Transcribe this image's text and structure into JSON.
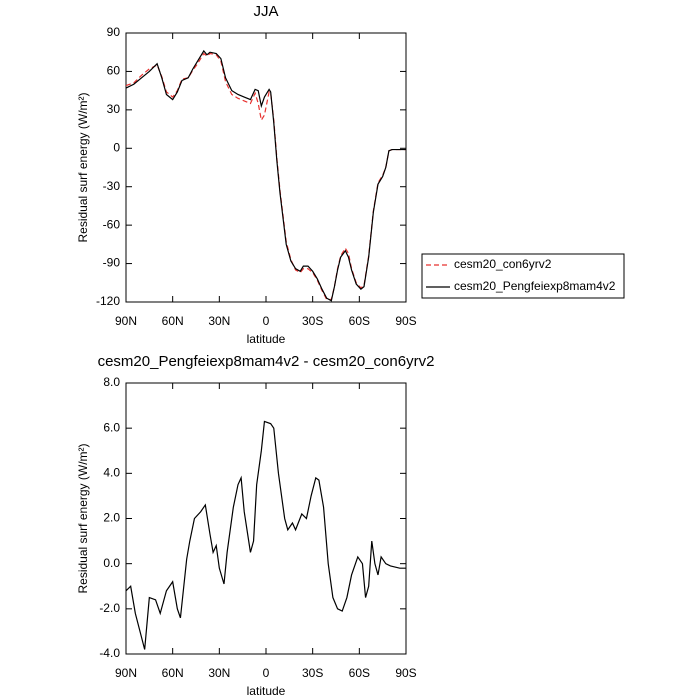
{
  "chart_data": [
    {
      "type": "line",
      "title": "JJA",
      "xlabel": "latitude",
      "ylabel": "Residual surf energy (W/m²)",
      "xlim": [
        90,
        -90
      ],
      "ylim": [
        -120,
        90
      ],
      "xticks": [
        {
          "value": 90,
          "label": "90N"
        },
        {
          "value": 60,
          "label": "60N"
        },
        {
          "value": 30,
          "label": "30N"
        },
        0,
        {
          "value": -30,
          "label": "30S"
        },
        {
          "value": -60,
          "label": "60S"
        },
        {
          "value": -90,
          "label": "90S"
        }
      ],
      "yticks": [
        90,
        60,
        30,
        0,
        -30,
        -60,
        -90,
        -120
      ],
      "legend": "right",
      "x": [
        90,
        85,
        80,
        75,
        70,
        67,
        64,
        60,
        57,
        54,
        50,
        47,
        44,
        40,
        38,
        36,
        32,
        29,
        26,
        22,
        18,
        14,
        10,
        7,
        5,
        3,
        1,
        -2,
        -3,
        -5,
        -7,
        -9,
        -11,
        -13,
        -16,
        -19,
        -22,
        -24,
        -27,
        -30,
        -33,
        -36,
        -39,
        -42,
        -44,
        -46,
        -48,
        -51,
        -53,
        -55,
        -58,
        -61,
        -63,
        -66,
        -69,
        -72,
        -75,
        -77,
        -79,
        -81,
        -85,
        -90
      ],
      "series": [
        {
          "name": "cesm20_con6yrv2",
          "color": "#e8312f",
          "dash": true,
          "values": [
            49,
            51,
            57,
            62,
            65,
            56,
            44,
            40,
            45,
            54,
            55,
            61,
            66,
            74,
            72,
            74,
            73,
            68,
            52,
            42,
            39,
            37,
            35,
            43,
            35,
            22,
            26,
            44,
            43,
            22,
            -8,
            -33,
            -53,
            -73,
            -87,
            -95,
            -97,
            -94,
            -94,
            -97,
            -103,
            -111,
            -118,
            -118,
            -108,
            -94,
            -84,
            -78,
            -82,
            -94,
            -105,
            -109,
            -107,
            -84,
            -49,
            -27,
            -21,
            -15,
            -2,
            -1,
            -1,
            -1
          ]
        },
        {
          "name": "cesm20_Pengfeiexp8mam4v2",
          "color": "#000000",
          "dash": false,
          "values": [
            47,
            50,
            55,
            60,
            66,
            55,
            42,
            38,
            44,
            53,
            55,
            62,
            68,
            76,
            73,
            75,
            74,
            70,
            55,
            45,
            42,
            40,
            38,
            46,
            45,
            33,
            40,
            46,
            44,
            20,
            -10,
            -35,
            -55,
            -75,
            -88,
            -94,
            -96,
            -92,
            -92,
            -96,
            -102,
            -110,
            -117,
            -119,
            -108,
            -95,
            -85,
            -80,
            -85,
            -95,
            -106,
            -110,
            -108,
            -85,
            -50,
            -28,
            -22,
            -15,
            -2,
            -1,
            -1,
            -1
          ]
        }
      ]
    },
    {
      "type": "line",
      "title": "cesm20_Pengfeiexp8mam4v2 - cesm20_con6yrv2",
      "xlabel": "latitude",
      "ylabel": "Residual surf energy (W/m²)",
      "xlim": [
        90,
        -90
      ],
      "ylim": [
        -4,
        8
      ],
      "xticks": [
        {
          "value": 90,
          "label": "90N"
        },
        {
          "value": 60,
          "label": "60N"
        },
        {
          "value": 30,
          "label": "30N"
        },
        0,
        {
          "value": -30,
          "label": "30S"
        },
        {
          "value": -60,
          "label": "60S"
        },
        {
          "value": -90,
          "label": "90S"
        }
      ],
      "yticks": [
        {
          "value": 8,
          "label": "8.0"
        },
        {
          "value": 6,
          "label": "6.0"
        },
        {
          "value": 4,
          "label": "4.0"
        },
        {
          "value": 2,
          "label": "2.0"
        },
        {
          "value": 0,
          "label": "0.0"
        },
        {
          "value": -2,
          "label": "-2.0"
        },
        {
          "value": -4,
          "label": "-4.0"
        }
      ],
      "x": [
        90,
        87,
        84,
        78,
        75,
        71,
        68,
        64,
        60,
        57,
        55,
        51,
        49,
        46,
        42,
        39,
        36,
        34,
        32,
        30,
        27,
        25,
        21,
        18,
        16,
        14,
        10,
        8,
        6,
        3,
        1,
        -3,
        -5,
        -8,
        -12,
        -14,
        -17,
        -19,
        -23,
        -26,
        -29,
        -32,
        -34,
        -37,
        -40,
        -43,
        -46,
        -49,
        -52,
        -55,
        -59,
        -62,
        -64,
        -66,
        -68,
        -70,
        -72,
        -74,
        -77,
        -80,
        -86,
        -90
      ],
      "series": [
        {
          "color": "#000000",
          "dash": false,
          "values": [
            -1.2,
            -1.0,
            -2.2,
            -3.8,
            -1.5,
            -1.6,
            -2.2,
            -1.2,
            -0.8,
            -2.0,
            -2.4,
            0.2,
            1.0,
            2.0,
            2.3,
            2.6,
            1.3,
            0.5,
            0.8,
            -0.2,
            -0.9,
            0.5,
            2.5,
            3.5,
            3.8,
            2.3,
            0.5,
            1.0,
            3.5,
            5.0,
            6.3,
            6.2,
            6.0,
            4.0,
            2.0,
            1.5,
            1.8,
            1.5,
            2.2,
            2.0,
            3.0,
            3.8,
            3.7,
            2.5,
            0.0,
            -1.5,
            -2.0,
            -2.1,
            -1.5,
            -0.5,
            0.3,
            0.0,
            -1.5,
            -1.0,
            1.0,
            0.0,
            -0.5,
            0.3,
            0.0,
            -0.1,
            -0.2,
            -0.2
          ]
        }
      ]
    }
  ]
}
